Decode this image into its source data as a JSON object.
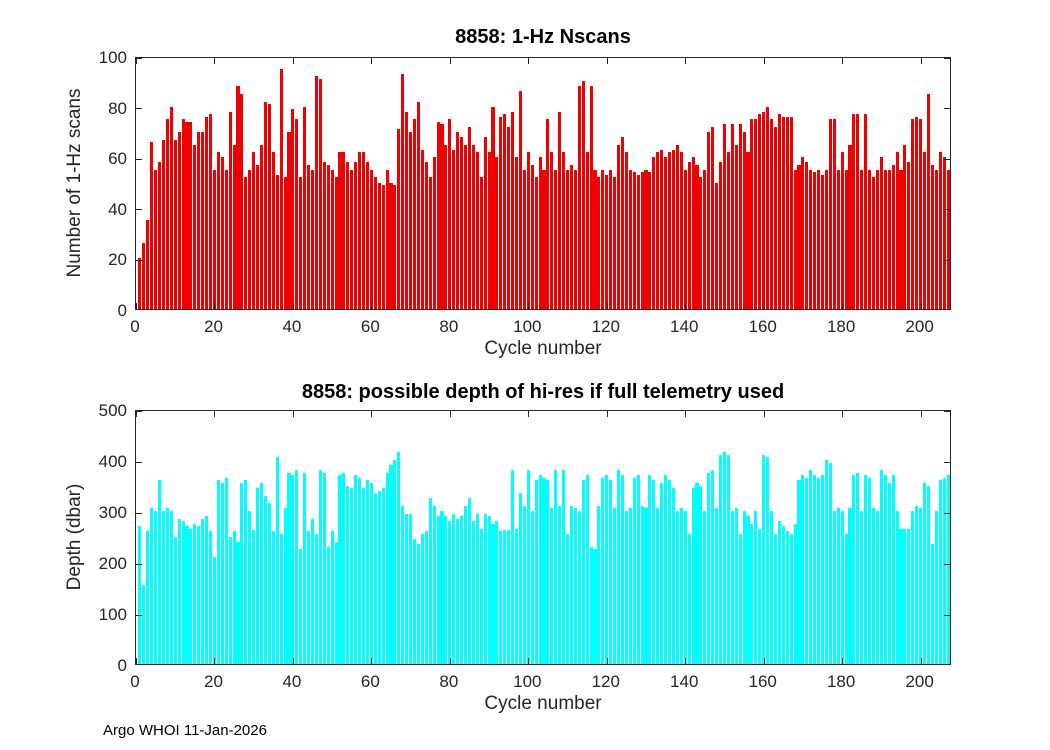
{
  "figure": {
    "footer": "Argo WHOI 11-Jan-2026"
  },
  "chart_data": [
    {
      "type": "bar",
      "title": "8858: 1-Hz Nscans",
      "xlabel": "Cycle number",
      "ylabel": "Number of 1-Hz scans",
      "bar_color": "#F00000",
      "grid": false,
      "legend": "none",
      "xlim": [
        0,
        208
      ],
      "ylim": [
        0,
        100
      ],
      "xticks": [
        0,
        20,
        40,
        60,
        80,
        100,
        120,
        140,
        160,
        180,
        200
      ],
      "yticks": [
        0,
        20,
        40,
        60,
        80,
        100
      ],
      "x_start": 1,
      "values": [
        20,
        26,
        35,
        66,
        55,
        58,
        67,
        75,
        80,
        67,
        70,
        75,
        74,
        74,
        65,
        70,
        70,
        76,
        77,
        55,
        62,
        60,
        55,
        78,
        65,
        88,
        85,
        52,
        55,
        62,
        57,
        65,
        82,
        81,
        62,
        53,
        95,
        52,
        70,
        79,
        75,
        52,
        80,
        57,
        55,
        92,
        91,
        58,
        57,
        55,
        52,
        62,
        62,
        58,
        55,
        58,
        62,
        62,
        58,
        55,
        52,
        50,
        49,
        55,
        50,
        49,
        71,
        93,
        78,
        70,
        75,
        82,
        63,
        58,
        52,
        60,
        74,
        73,
        65,
        75,
        63,
        70,
        68,
        65,
        72,
        65,
        62,
        52,
        68,
        62,
        80,
        60,
        76,
        77,
        72,
        78,
        60,
        86,
        55,
        62,
        57,
        52,
        60,
        55,
        75,
        62,
        55,
        78,
        62,
        55,
        57,
        55,
        88,
        90,
        62,
        88,
        55,
        52,
        55,
        53,
        55,
        52,
        65,
        68,
        62,
        55,
        54,
        53,
        54,
        55,
        54,
        60,
        62,
        63,
        60,
        62,
        63,
        65,
        62,
        55,
        58,
        60,
        57,
        52,
        55,
        70,
        72,
        50,
        58,
        73,
        62,
        73,
        65,
        73,
        70,
        62,
        75,
        75,
        77,
        78,
        80,
        75,
        72,
        77,
        76,
        76,
        76,
        55,
        57,
        60,
        58,
        55,
        54,
        55,
        53,
        55,
        75,
        75,
        55,
        62,
        55,
        65,
        77,
        77,
        55,
        77,
        55,
        52,
        55,
        60,
        55,
        55,
        57,
        62,
        55,
        65,
        58,
        75,
        76,
        75,
        62,
        85,
        57,
        55,
        62,
        60,
        55
      ]
    },
    {
      "type": "bar",
      "title": "8858: possible depth of hi-res if full telemetry used",
      "xlabel": "Cycle number",
      "ylabel": "Depth (dbar)",
      "bar_color": "#00FFFF",
      "grid": false,
      "legend": "none",
      "xlim": [
        0,
        208
      ],
      "ylim": [
        0,
        500
      ],
      "xticks": [
        0,
        20,
        40,
        60,
        80,
        100,
        120,
        140,
        160,
        180,
        200
      ],
      "yticks": [
        0,
        100,
        200,
        300,
        400,
        500
      ],
      "x_start": 1,
      "values": [
        270,
        155,
        260,
        305,
        300,
        360,
        300,
        305,
        300,
        250,
        285,
        280,
        270,
        265,
        275,
        270,
        285,
        290,
        260,
        210,
        360,
        355,
        365,
        250,
        260,
        240,
        355,
        360,
        300,
        263,
        345,
        355,
        330,
        315,
        260,
        405,
        255,
        305,
        375,
        370,
        380,
        225,
        375,
        260,
        285,
        255,
        380,
        375,
        230,
        260,
        240,
        370,
        375,
        350,
        345,
        370,
        365,
        345,
        360,
        355,
        335,
        340,
        345,
        375,
        390,
        400,
        415,
        310,
        295,
        295,
        245,
        235,
        255,
        260,
        325,
        310,
        290,
        300,
        290,
        280,
        295,
        285,
        290,
        310,
        325,
        280,
        295,
        265,
        295,
        290,
        275,
        280,
        260,
        262,
        263,
        380,
        265,
        335,
        310,
        380,
        300,
        360,
        370,
        365,
        360,
        305,
        380,
        310,
        380,
        255,
        310,
        305,
        300,
        360,
        370,
        230,
        225,
        310,
        365,
        370,
        360,
        305,
        380,
        370,
        300,
        305,
        365,
        370,
        310,
        305,
        370,
        360,
        305,
        355,
        370,
        360,
        345,
        300,
        305,
        300,
        255,
        345,
        355,
        350,
        300,
        375,
        380,
        305,
        410,
        415,
        410,
        300,
        305,
        255,
        300,
        290,
        275,
        300,
        265,
        410,
        405,
        300,
        255,
        280,
        270,
        260,
        255,
        275,
        360,
        370,
        365,
        380,
        370,
        365,
        370,
        400,
        395,
        300,
        305,
        300,
        255,
        305,
        370,
        375,
        300,
        370,
        365,
        305,
        300,
        380,
        370,
        355,
        370,
        300,
        265,
        265,
        265,
        300,
        310,
        305,
        355,
        350,
        235,
        300,
        360,
        365,
        370
      ]
    }
  ]
}
